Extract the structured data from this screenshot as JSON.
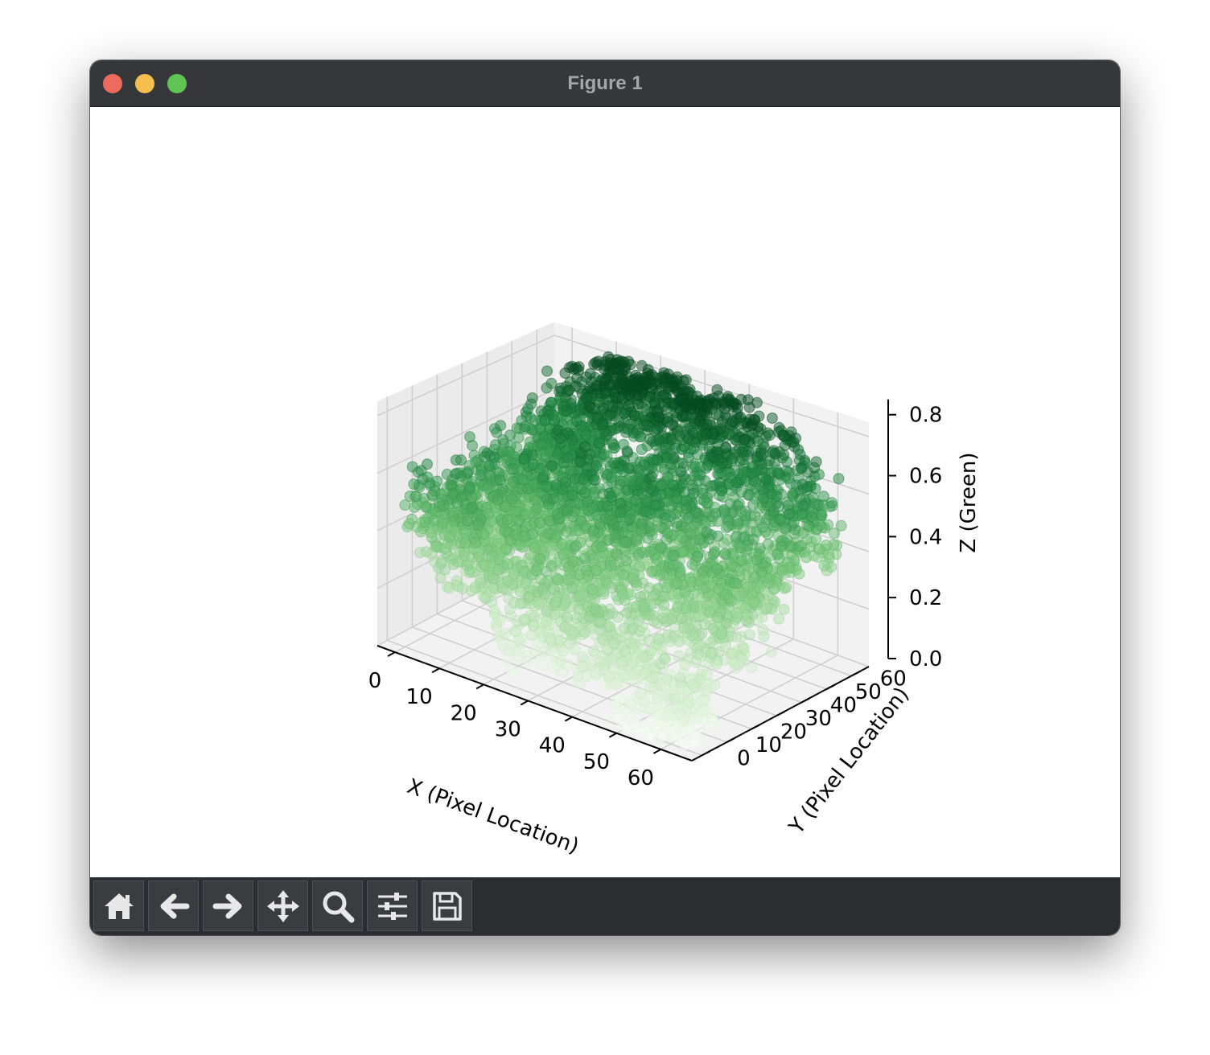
{
  "window": {
    "title": "Figure 1"
  },
  "toolbar": {
    "buttons": [
      {
        "name": "home-button",
        "icon": "home-icon"
      },
      {
        "name": "back-button",
        "icon": "arrow-left-icon"
      },
      {
        "name": "forward-button",
        "icon": "arrow-right-icon"
      },
      {
        "name": "pan-button",
        "icon": "move-icon"
      },
      {
        "name": "zoom-button",
        "icon": "magnifier-icon"
      },
      {
        "name": "configure-subplots-button",
        "icon": "sliders-icon"
      },
      {
        "name": "save-button",
        "icon": "floppy-disk-icon"
      }
    ]
  },
  "chart_data": {
    "type": "scatter",
    "projection": "3d",
    "xlabel": "X (Pixel Location)",
    "ylabel": "Y (Pixel Location)",
    "zlabel": "Z (Green)",
    "xlim": [
      -4,
      67
    ],
    "ylim": [
      -4,
      67
    ],
    "zlim": [
      0,
      0.85
    ],
    "xticks": [
      "0",
      "10",
      "20",
      "30",
      "40",
      "50",
      "60"
    ],
    "yticks": [
      "0",
      "10",
      "20",
      "30",
      "40",
      "50",
      "60"
    ],
    "zticks": [
      "0.0",
      "0.2",
      "0.4",
      "0.6",
      "0.8"
    ],
    "grid": true,
    "colormap": "Greens",
    "marker_alpha": 0.5,
    "grid_points": {
      "x_range": [
        0,
        63
      ],
      "y_range": [
        0,
        63
      ],
      "step": 1
    },
    "surface_summary": {
      "description_z_by_region": [
        {
          "x": 0,
          "y": 60,
          "z": 0.55
        },
        {
          "x": 20,
          "y": 60,
          "z": 0.78
        },
        {
          "x": 40,
          "y": 60,
          "z": 0.72
        },
        {
          "x": 60,
          "y": 60,
          "z": 0.55
        },
        {
          "x": 0,
          "y": 30,
          "z": 0.42
        },
        {
          "x": 30,
          "y": 30,
          "z": 0.5
        },
        {
          "x": 60,
          "y": 30,
          "z": 0.35
        },
        {
          "x": 0,
          "y": 0,
          "z": 0.45
        },
        {
          "x": 30,
          "y": 0,
          "z": 0.25
        },
        {
          "x": 60,
          "y": 0,
          "z": 0.05
        }
      ]
    }
  }
}
